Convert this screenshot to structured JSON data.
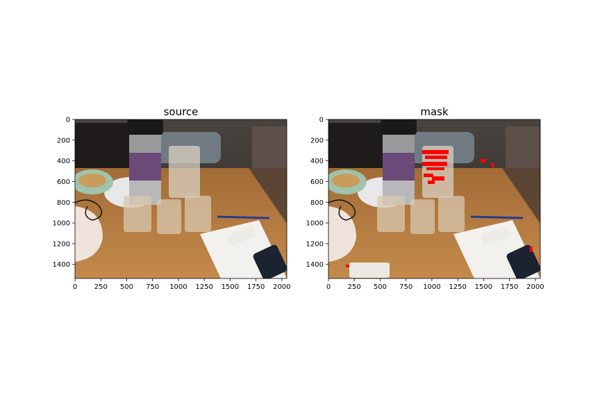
{
  "panels": [
    {
      "title": "source",
      "x_ticks": [
        "0",
        "250",
        "500",
        "750",
        "1000",
        "1250",
        "1500",
        "1750",
        "2000"
      ],
      "y_ticks": [
        "0",
        "200",
        "400",
        "600",
        "800",
        "1000",
        "1200",
        "1400"
      ],
      "x_range": [
        0,
        2048
      ],
      "y_range": [
        0,
        1536
      ]
    },
    {
      "title": "mask",
      "x_ticks": [
        "0",
        "250",
        "500",
        "750",
        "1000",
        "1250",
        "1500",
        "1750",
        "2000"
      ],
      "y_ticks": [
        "0",
        "200",
        "400",
        "600",
        "800",
        "1000",
        "1200",
        "1400"
      ],
      "x_range": [
        0,
        2048
      ],
      "y_range": [
        0,
        1536
      ]
    }
  ],
  "colors": {
    "mask_marks": "#ff0000",
    "table": "#b07a3e",
    "background": "#2e2a28"
  }
}
